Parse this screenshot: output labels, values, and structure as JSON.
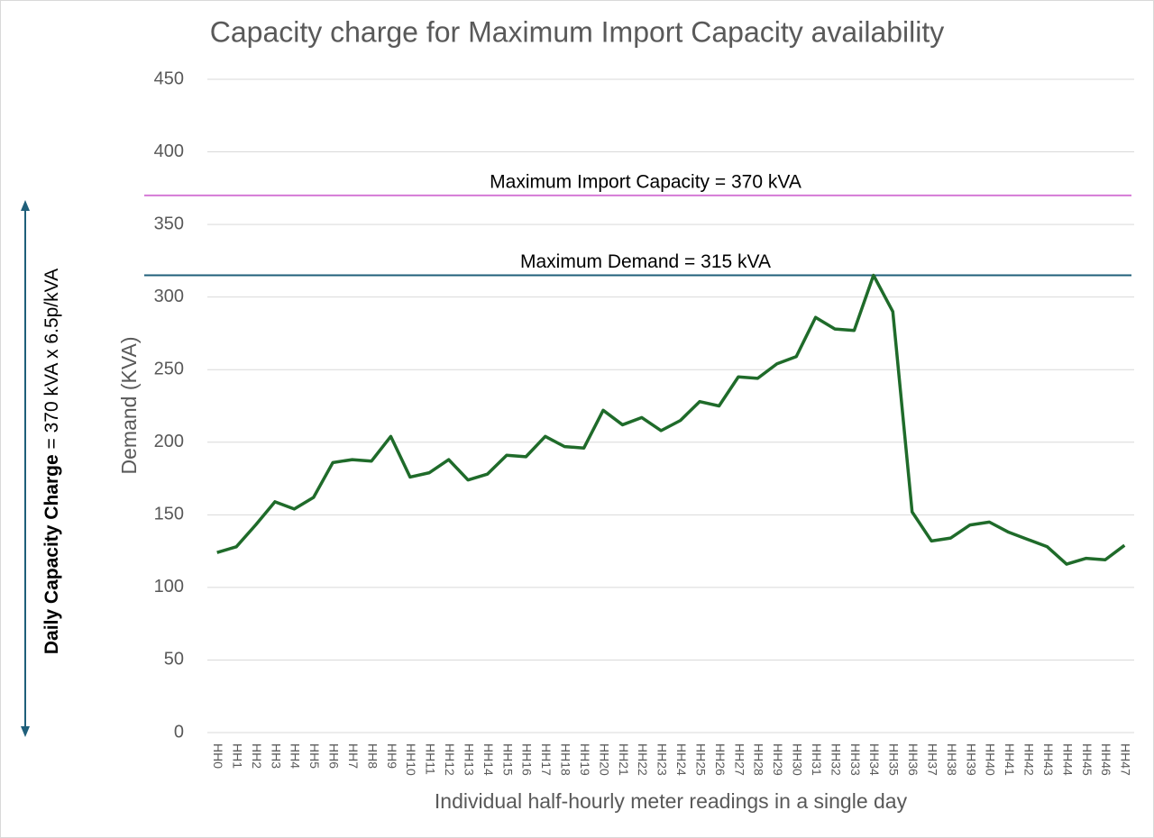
{
  "chart_data": {
    "type": "line",
    "title": "Capacity charge for Maximum Import Capacity availability",
    "x_label": "Individual half-hourly meter readings in a single day",
    "y_label": "Demand (KVA)",
    "categories": [
      "HH0",
      "HH1",
      "HH2",
      "HH3",
      "HH4",
      "HH5",
      "HH6",
      "HH7",
      "HH8",
      "HH9",
      "HH10",
      "HH11",
      "HH12",
      "HH13",
      "HH14",
      "HH15",
      "HH16",
      "HH17",
      "HH18",
      "HH19",
      "HH20",
      "HH21",
      "HH22",
      "HH23",
      "HH24",
      "HH25",
      "HH26",
      "HH27",
      "HH28",
      "HH29",
      "HH30",
      "HH31",
      "HH32",
      "HH33",
      "HH34",
      "HH35",
      "HH36",
      "HH37",
      "HH38",
      "HH39",
      "HH40",
      "HH41",
      "HH42",
      "HH43",
      "HH44",
      "HH45",
      "HH46",
      "HH47"
    ],
    "values": [
      124,
      128,
      143,
      159,
      154,
      162,
      186,
      188,
      187,
      204,
      176,
      179,
      188,
      174,
      178,
      191,
      190,
      204,
      197,
      196,
      222,
      212,
      217,
      208,
      215,
      228,
      225,
      245,
      244,
      254,
      259,
      286,
      278,
      277,
      315,
      290,
      152,
      132,
      134,
      143,
      145,
      138,
      133,
      128,
      116,
      120,
      119,
      129
    ],
    "color": "#1f6b2a",
    "ylim": [
      0,
      450
    ],
    "yticks": [
      0,
      50,
      100,
      150,
      200,
      250,
      300,
      350,
      400,
      450
    ],
    "grid": true,
    "reference_lines": [
      {
        "label": "Maximum Import Capacity = 370 kVA",
        "value": 370,
        "color": "#d57ad6"
      },
      {
        "label": "Maximum Demand = 315 kVA",
        "value": 315,
        "color": "#1f5f7a"
      }
    ],
    "side_annotation": {
      "bold": "Daily Capacity Charge",
      "text": "= 370 kVA x  6.5p/kVA",
      "color": "#1f5f7a"
    }
  }
}
